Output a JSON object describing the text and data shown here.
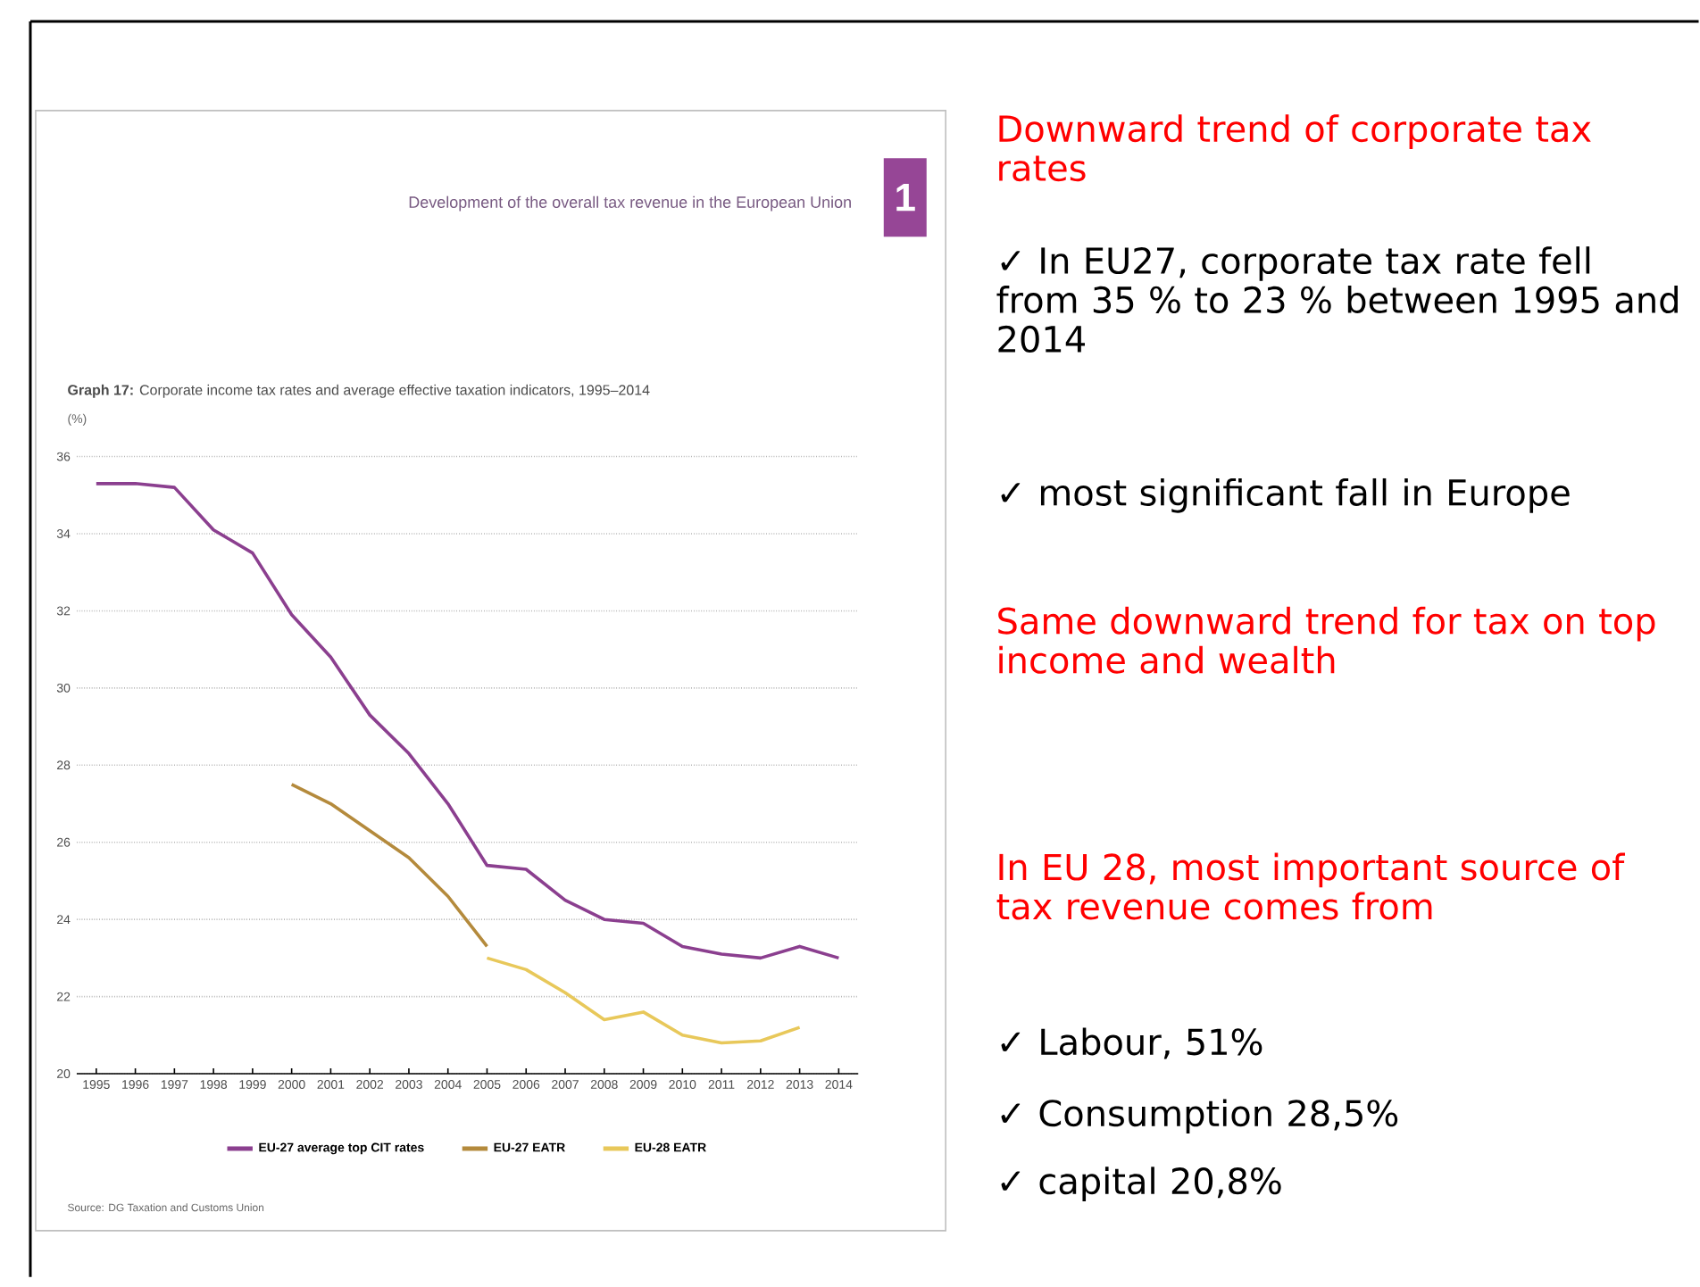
{
  "chart_data": [
    {
      "type": "line",
      "title": "**Graph 17:** Corporate income tax rates and average effective taxation indicators, 1995–2014",
      "ylabel": "(%)",
      "categories": [
        "1995",
        "1996",
        "1997",
        "1998",
        "1999",
        "2000",
        "2001",
        "2002",
        "2003",
        "2004",
        "2005",
        "2006",
        "2007",
        "2008",
        "2009",
        "2010",
        "2011",
        "2012",
        "2013",
        "2014"
      ],
      "series": [
        {
          "name": "EU-27 average top CIT rates",
          "color": "#8b3f8f",
          "values": [
            35.3,
            35.3,
            35.2,
            34.1,
            33.5,
            31.9,
            30.8,
            29.3,
            28.3,
            27.0,
            25.4,
            25.3,
            24.5,
            24.0,
            23.9,
            23.3,
            23.1,
            23.0,
            23.3,
            23.0
          ]
        },
        {
          "name": "EU-27 EATR",
          "color": "#b48a3c",
          "values": [
            null,
            null,
            null,
            null,
            null,
            27.5,
            27.0,
            26.3,
            25.6,
            24.6,
            23.3,
            null,
            null,
            null,
            null,
            null,
            null,
            null,
            null,
            null
          ]
        },
        {
          "name": "EU-28 EATR",
          "color": "#e8c85a",
          "values": [
            null,
            null,
            null,
            null,
            null,
            null,
            null,
            null,
            null,
            null,
            23.0,
            22.7,
            22.1,
            21.4,
            21.6,
            21.0,
            20.8,
            20.85,
            21.2,
            null
          ]
        }
      ],
      "ylim": [
        20,
        36
      ],
      "yticks": [
        20,
        22,
        24,
        26,
        28,
        30,
        32,
        34,
        36
      ],
      "grid": "y",
      "legend": "bottom",
      "line_style": "solid",
      "marker": "none",
      "annotations": [
        "Development of the overall tax revenue in the European Union",
        "1",
        "Source: DG Taxation and Customs Union"
      ]
    },
    {
      "type": "other",
      "annotations": [
        "Downward trend of corporate tax rates",
        "✓ In EU27, corporate tax rate fell from  35 % to 23 % between 1995 and 2014",
        "✓ most significant fall in Europe",
        "Same downward trend for tax on top income and wealth",
        "In EU 28, most important source of tax revenue comes from",
        "✓ Labour, 51%",
        "✓ Consumption 28,5%",
        "✓ capital 20,8%"
      ]
    }
  ]
}
